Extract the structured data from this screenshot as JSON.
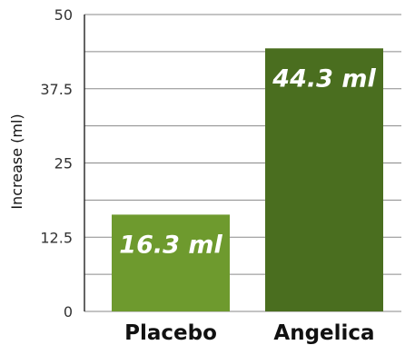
{
  "chart_data": {
    "type": "bar",
    "title": "",
    "xlabel": "",
    "ylabel": "Increase (ml)",
    "categories": [
      "Placebo",
      "Angelica"
    ],
    "values": [
      16.3,
      44.3
    ],
    "data_labels": [
      "16.3 ml",
      "44.3 ml"
    ],
    "bar_colors": [
      "#6e9a2e",
      "#4a6e1f"
    ],
    "ylim": [
      0,
      50
    ],
    "yticks": [
      0,
      12.5,
      25,
      37.5,
      50
    ],
    "ytick_labels": [
      "0",
      "12.5",
      "25",
      "37.5",
      "50"
    ],
    "grid": true,
    "legend": "none"
  }
}
